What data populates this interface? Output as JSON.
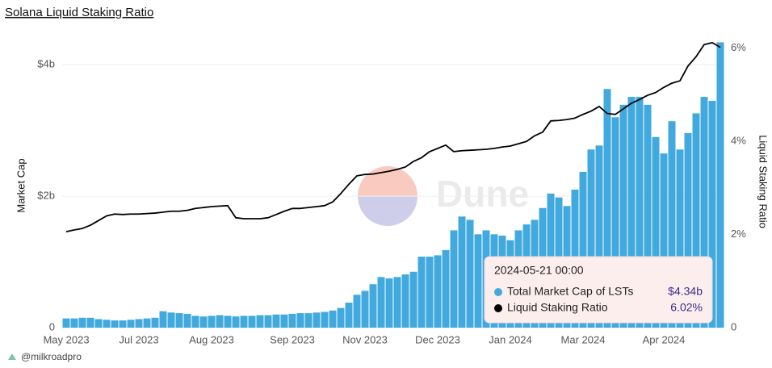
{
  "chart_data": {
    "type": "bar",
    "title": "Solana Liquid Staking Ratio",
    "y_label": "Market Cap",
    "y2_label": "Liquid Staking Ratio",
    "watermark": "Dune",
    "footer": "@milkroadpro",
    "categories": [
      "May 2023",
      null,
      null,
      null,
      null,
      null,
      null,
      null,
      null,
      "Jul 2023",
      null,
      null,
      null,
      null,
      null,
      null,
      null,
      null,
      "Aug 2023",
      null,
      null,
      null,
      null,
      null,
      null,
      null,
      null,
      null,
      "Sep 2023",
      null,
      null,
      null,
      null,
      null,
      null,
      null,
      null,
      "Nov 2023",
      null,
      null,
      null,
      null,
      null,
      null,
      null,
      null,
      "Dec 2023",
      null,
      null,
      null,
      null,
      null,
      null,
      null,
      null,
      "Jan 2024",
      null,
      null,
      null,
      null,
      null,
      null,
      null,
      null,
      "Mar 2024",
      null,
      null,
      null,
      null,
      null,
      null,
      null,
      null,
      null,
      "Apr 2024",
      null,
      null,
      null,
      null,
      null,
      null,
      null
    ],
    "series": [
      {
        "name": "Total Market Cap of LSTs",
        "type": "bar",
        "color": "#41a9de",
        "values": [
          0.14,
          0.14,
          0.15,
          0.15,
          0.13,
          0.12,
          0.11,
          0.11,
          0.12,
          0.13,
          0.14,
          0.15,
          0.25,
          0.23,
          0.22,
          0.21,
          0.18,
          0.17,
          0.18,
          0.19,
          0.18,
          0.17,
          0.18,
          0.18,
          0.19,
          0.19,
          0.2,
          0.2,
          0.21,
          0.22,
          0.22,
          0.23,
          0.24,
          0.26,
          0.3,
          0.38,
          0.5,
          0.56,
          0.66,
          0.77,
          0.75,
          0.77,
          0.81,
          0.85,
          1.08,
          1.08,
          1.1,
          1.18,
          1.48,
          1.69,
          1.64,
          1.42,
          1.48,
          1.42,
          1.4,
          1.33,
          1.48,
          1.57,
          1.64,
          1.82,
          2.04,
          1.98,
          1.85,
          2.1,
          2.37,
          2.71,
          2.77,
          3.63,
          3.2,
          3.39,
          3.51,
          3.51,
          3.39,
          2.9,
          2.65,
          3.14,
          2.71,
          2.96,
          3.26,
          3.51,
          3.45,
          4.34
        ]
      },
      {
        "name": "Liquid Staking Ratio",
        "type": "line",
        "axis": "y2",
        "color": "#000000",
        "values": [
          2.06,
          2.1,
          2.13,
          2.2,
          2.3,
          2.4,
          2.44,
          2.43,
          2.44,
          2.44,
          2.45,
          2.46,
          2.48,
          2.5,
          2.5,
          2.52,
          2.56,
          2.58,
          2.6,
          2.61,
          2.62,
          2.36,
          2.34,
          2.34,
          2.34,
          2.36,
          2.43,
          2.5,
          2.56,
          2.56,
          2.58,
          2.6,
          2.62,
          2.7,
          2.88,
          3.08,
          3.26,
          3.29,
          3.3,
          3.33,
          3.36,
          3.4,
          3.45,
          3.57,
          3.65,
          3.78,
          3.85,
          3.92,
          3.78,
          3.8,
          3.81,
          3.82,
          3.83,
          3.85,
          3.88,
          3.9,
          3.95,
          4.0,
          4.12,
          4.2,
          4.44,
          4.45,
          4.47,
          4.5,
          4.58,
          4.65,
          4.75,
          4.6,
          4.58,
          4.7,
          4.82,
          4.9,
          4.99,
          5.05,
          5.16,
          5.25,
          5.3,
          5.62,
          5.82,
          6.08,
          6.12,
          6.02
        ]
      }
    ],
    "ylim": [
      0,
      4.37
    ],
    "yticks": [
      0,
      {
        "value": 2,
        "label": "$2b"
      },
      {
        "value": 4,
        "label": "$4b"
      }
    ],
    "y2lim": [
      0,
      6.17
    ],
    "y2ticks": [
      0,
      {
        "value": 2,
        "label": "2%"
      },
      {
        "value": 4,
        "label": "4%"
      },
      {
        "value": 6,
        "label": "6%"
      }
    ],
    "grid": true,
    "tooltip": {
      "date": "2024-05-21 00:00",
      "value_labels": [
        "$4.34b",
        "6.02%"
      ]
    }
  }
}
